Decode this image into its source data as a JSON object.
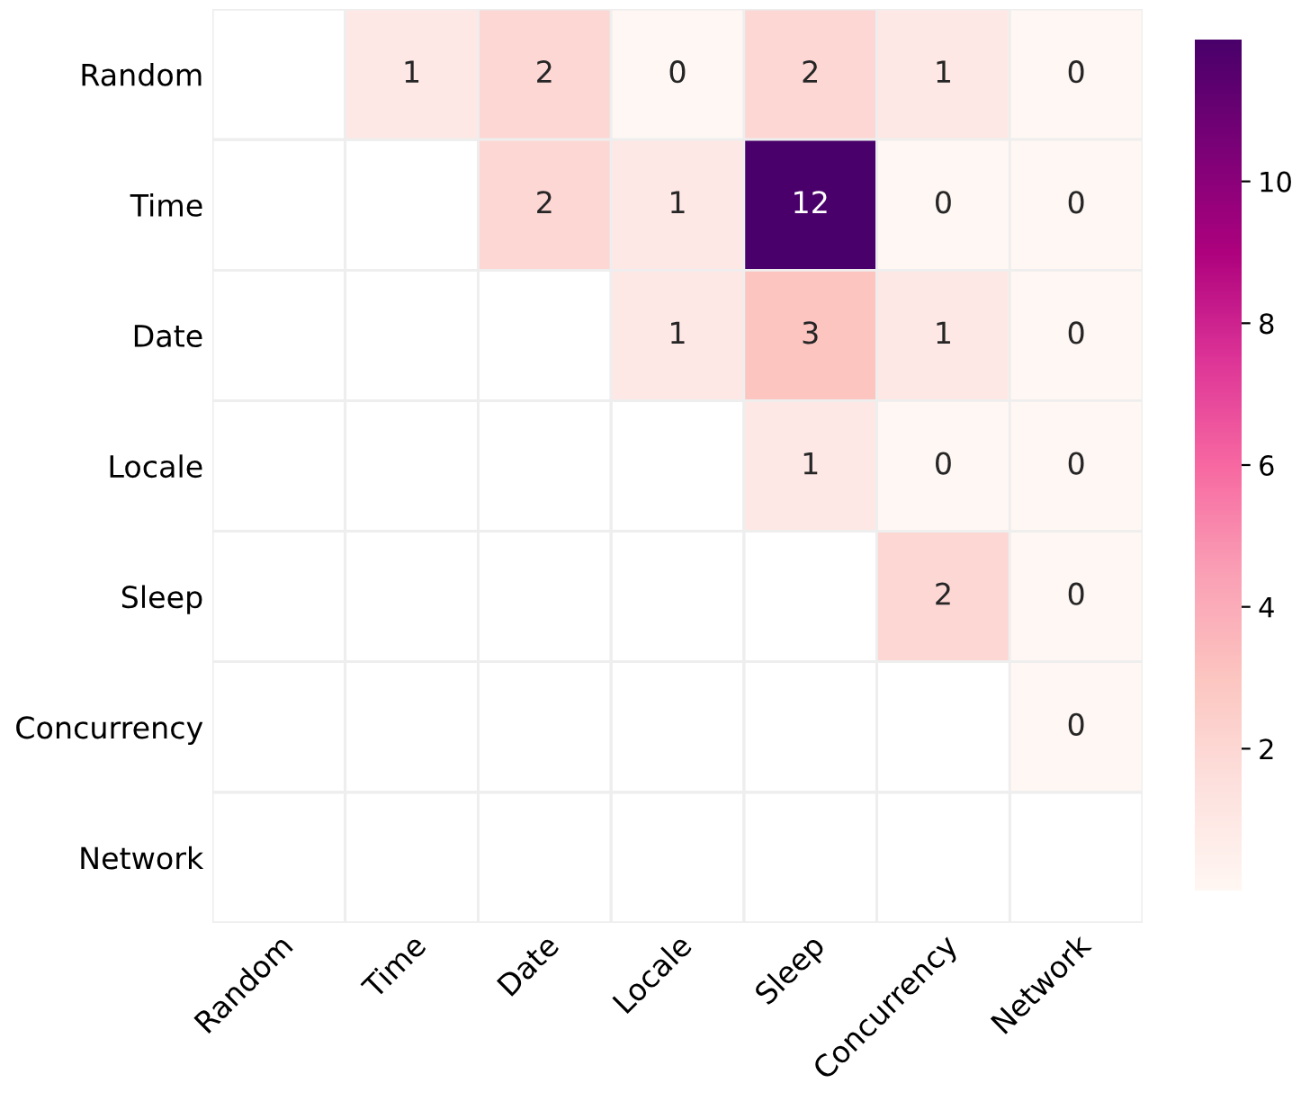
{
  "chart_data": {
    "type": "heatmap",
    "categories": [
      "Random",
      "Time",
      "Date",
      "Locale",
      "Sleep",
      "Concurrency",
      "Network"
    ],
    "y_categories": [
      "Random",
      "Time",
      "Date",
      "Locale",
      "Sleep",
      "Concurrency",
      "Network"
    ],
    "cells": [
      [
        null,
        1,
        2,
        0,
        2,
        1,
        0
      ],
      [
        null,
        null,
        2,
        1,
        12,
        0,
        0
      ],
      [
        null,
        null,
        null,
        1,
        3,
        1,
        0
      ],
      [
        null,
        null,
        null,
        null,
        1,
        0,
        0
      ],
      [
        null,
        null,
        null,
        null,
        null,
        2,
        0
      ],
      [
        null,
        null,
        null,
        null,
        null,
        null,
        0
      ],
      [
        null,
        null,
        null,
        null,
        null,
        null,
        null
      ]
    ],
    "clim": [
      0,
      12
    ],
    "cticks": [
      2,
      4,
      6,
      8,
      10
    ],
    "data_labels": true
  }
}
